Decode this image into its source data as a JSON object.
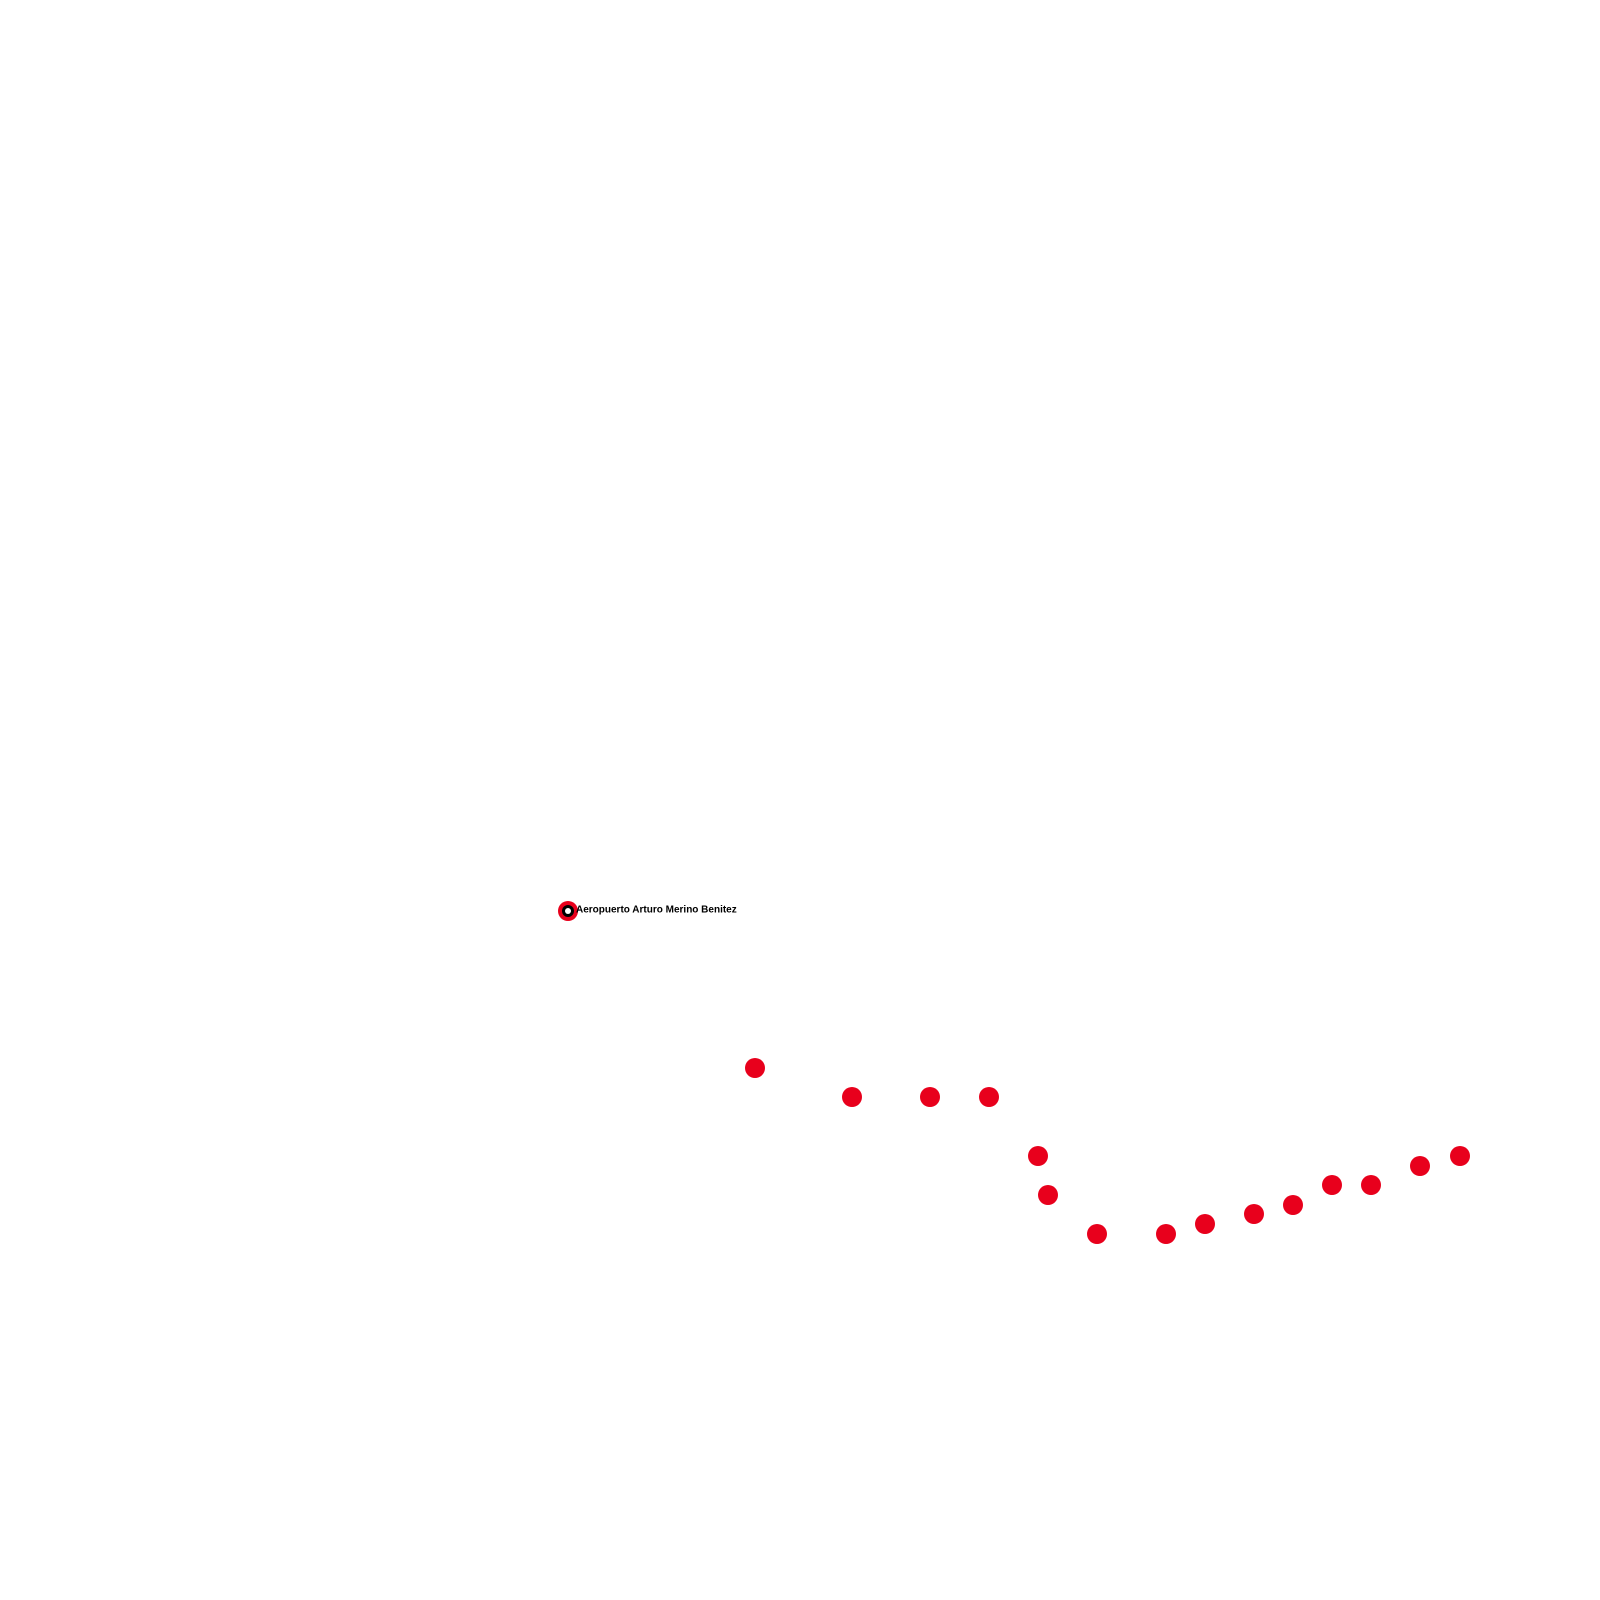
{
  "stations": [
    {
      "label": "Aeropuerto Arturo Merino Benitez"
    }
  ]
}
